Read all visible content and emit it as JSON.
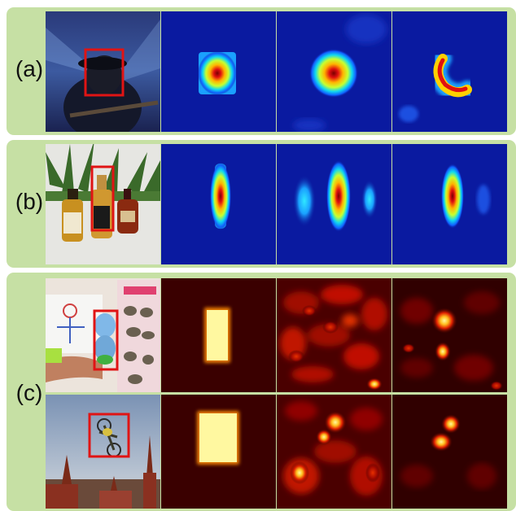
{
  "rows": [
    {
      "label": "(a)"
    },
    {
      "label": "(b)"
    },
    {
      "label": "(c)"
    }
  ],
  "colors": {
    "panel_bg": "#c6e0a4",
    "bbox": "#e01414",
    "jet_background": "#0a1aa0",
    "heat_background": "#3a0000"
  }
}
